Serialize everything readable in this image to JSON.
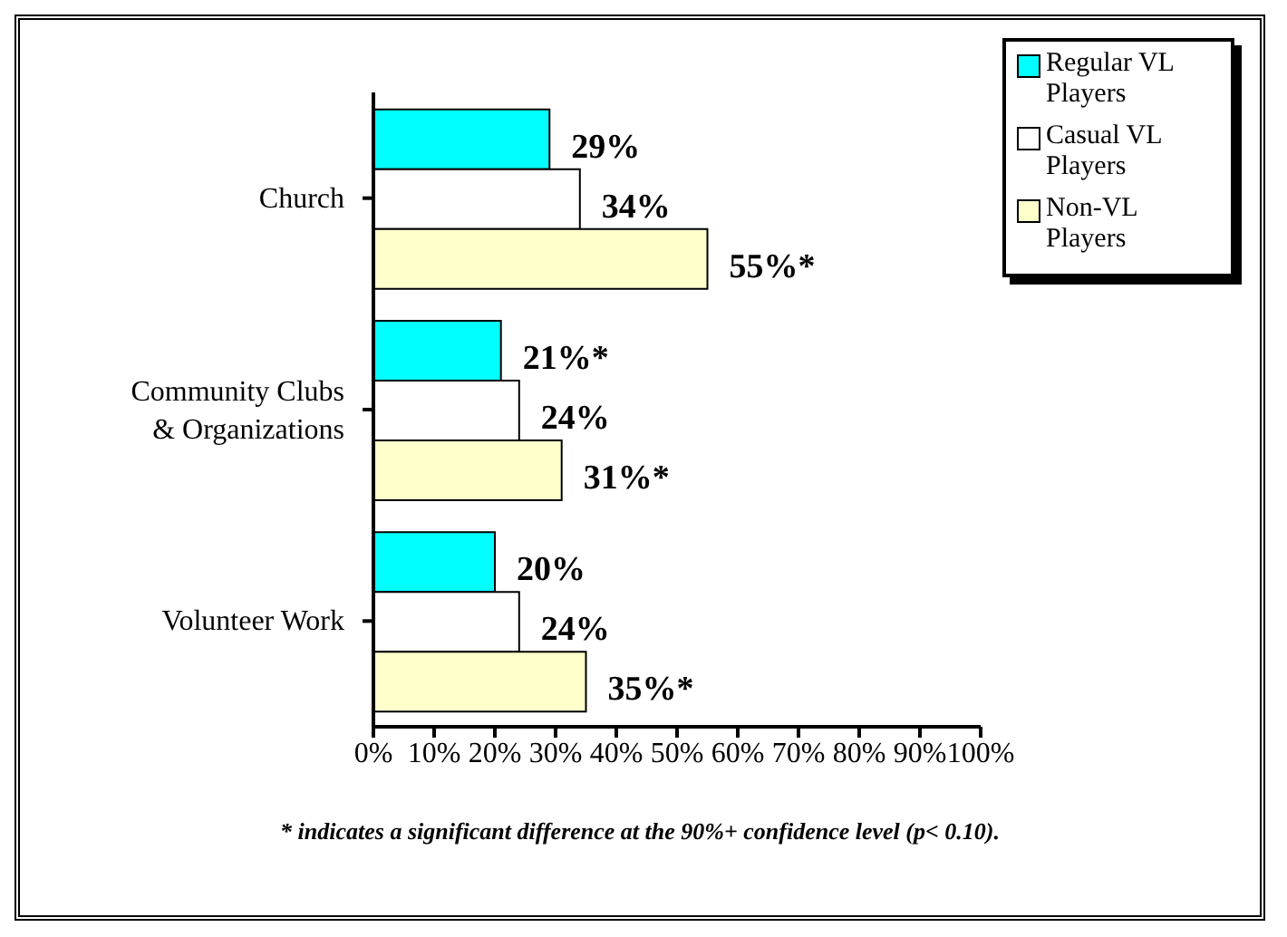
{
  "chart_data": {
    "type": "bar",
    "orientation": "horizontal",
    "categories": [
      "Church",
      "Community Clubs & Organizations",
      "Volunteer Work"
    ],
    "series": [
      {
        "name": "Regular VL Players",
        "color": "#00ffff",
        "values": [
          29,
          21,
          20
        ],
        "value_labels": [
          "29%",
          "21%*",
          "20%"
        ]
      },
      {
        "name": "Casual VL Players",
        "color": "#ffffff",
        "values": [
          34,
          24,
          24
        ],
        "value_labels": [
          "34%",
          "24%",
          "24%"
        ]
      },
      {
        "name": "Non-VL Players",
        "color": "#ffffcc",
        "values": [
          55,
          31,
          35
        ],
        "value_labels": [
          "55%*",
          "31%*",
          "35%*"
        ]
      }
    ],
    "xlim": [
      0,
      100
    ],
    "xticks": [
      {
        "value": 0,
        "label": "0%"
      },
      {
        "value": 10,
        "label": "10%"
      },
      {
        "value": 20,
        "label": "20%"
      },
      {
        "value": 30,
        "label": "30%"
      },
      {
        "value": 40,
        "label": "40%"
      },
      {
        "value": 50,
        "label": "50%"
      },
      {
        "value": 60,
        "label": "60%"
      },
      {
        "value": 70,
        "label": "70%"
      },
      {
        "value": 80,
        "label": "80%"
      },
      {
        "value": 90,
        "label": "90%"
      },
      {
        "value": 100,
        "label": "100%"
      }
    ],
    "legend": "top right",
    "grid": false,
    "annotations": [
      "* indicates a significant difference at the 90%+ confidence level (p< 0.10)."
    ]
  }
}
